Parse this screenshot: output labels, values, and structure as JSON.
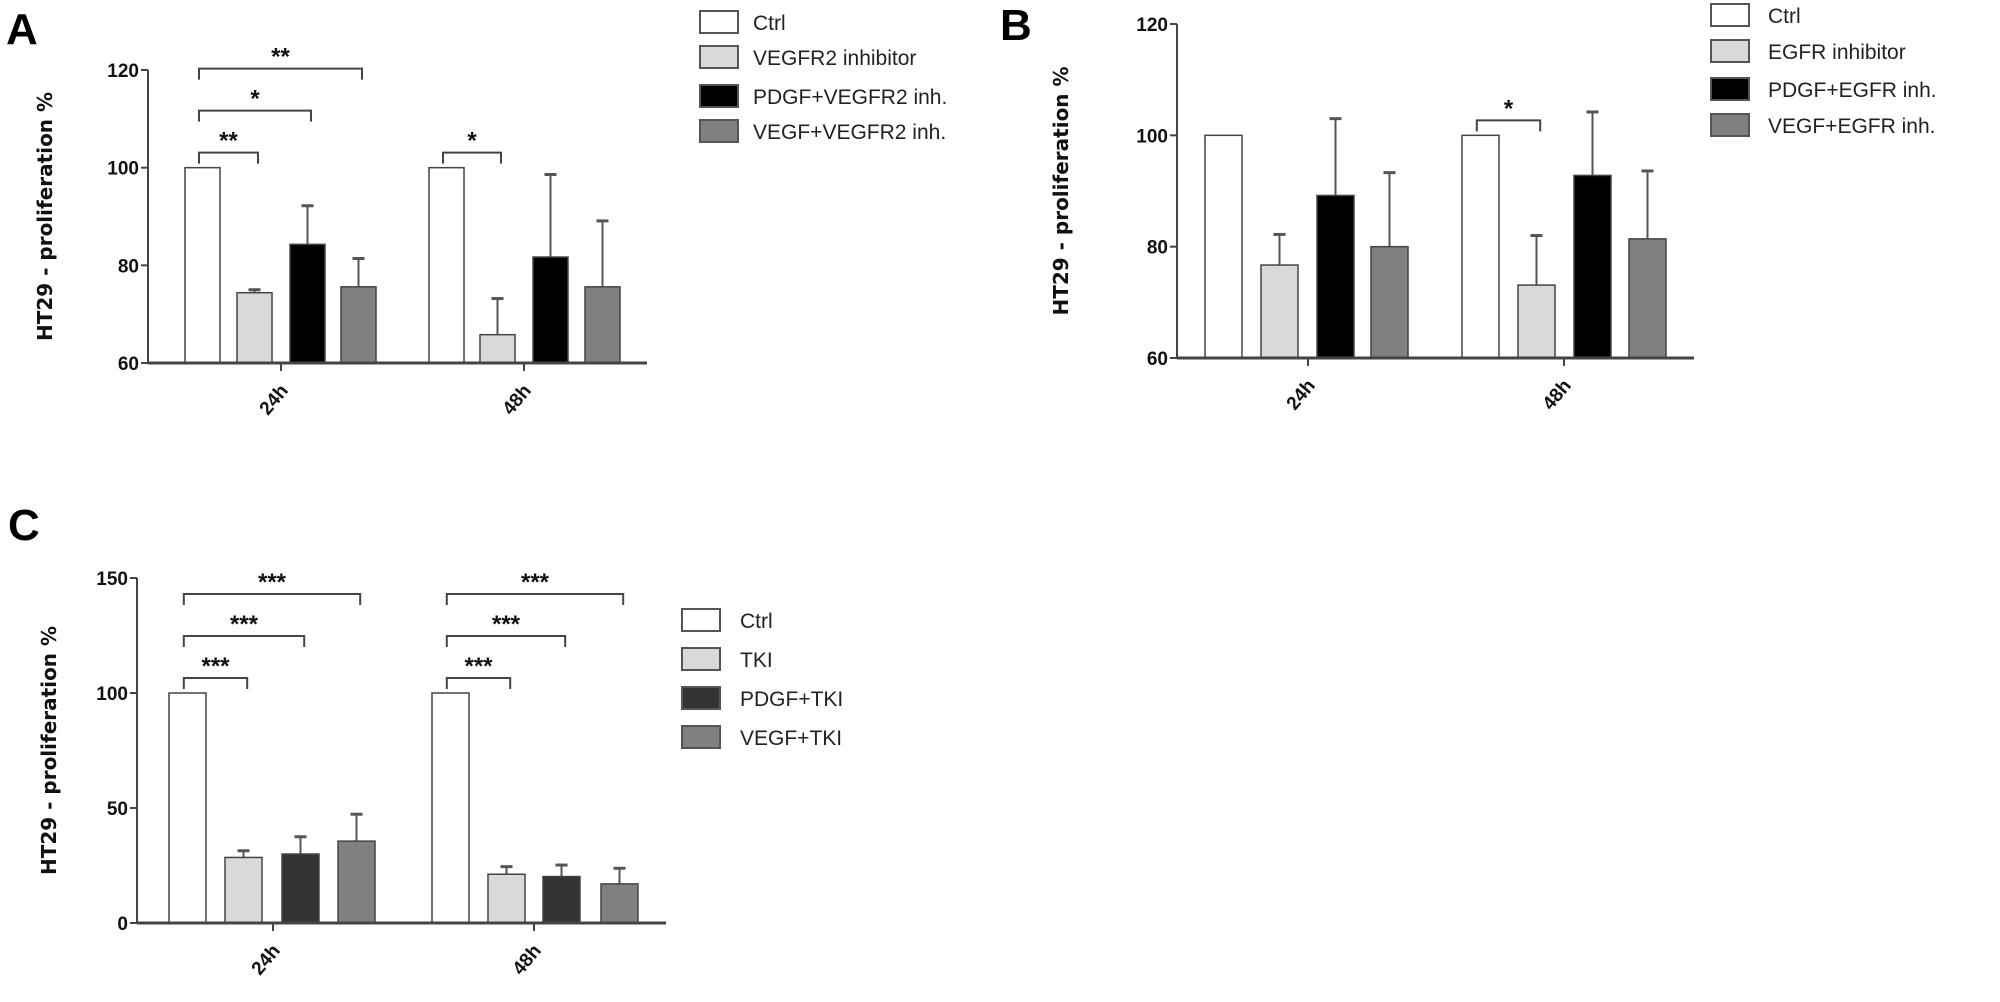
{
  "chart_data": [
    {
      "panel": "A",
      "type": "bar",
      "ylabel": "HT29 - proliferation %",
      "ylim": [
        60,
        120
      ],
      "yticks": [
        60,
        80,
        100,
        120
      ],
      "categories": [
        "24h",
        "48h"
      ],
      "series": [
        {
          "name": "Ctrl",
          "color": "#ffffff",
          "values": [
            100,
            100
          ],
          "errors": [
            100,
            100
          ]
        },
        {
          "name": "VEGFR2 inhibitor",
          "color": "#d9d9d9",
          "values": [
            74.4,
            65.8
          ],
          "errors": [
            75.0,
            73.2
          ]
        },
        {
          "name": "PDGF+VEGFR2 inh.",
          "color": "#000000",
          "values": [
            84.3,
            81.7
          ],
          "errors": [
            92.2,
            98.6
          ]
        },
        {
          "name": "VEGF+VEGFR2 inh.",
          "color": "#808080",
          "values": [
            75.6,
            75.6
          ],
          "errors": [
            81.4,
            89.1
          ]
        }
      ],
      "significance": [
        {
          "category": "24h",
          "from": "Ctrl",
          "to": "VEGFR2 inhibitor",
          "label": "**"
        },
        {
          "category": "24h",
          "from": "Ctrl",
          "to": "PDGF+VEGFR2 inh.",
          "label": "*"
        },
        {
          "category": "24h",
          "from": "Ctrl",
          "to": "VEGF+VEGFR2 inh.",
          "label": "**"
        },
        {
          "category": "48h",
          "from": "Ctrl",
          "to": "VEGFR2 inhibitor",
          "label": "*"
        }
      ],
      "legend": "right"
    },
    {
      "panel": "B",
      "type": "bar",
      "ylabel": "HT29 - proliferation %",
      "ylim": [
        60,
        120
      ],
      "yticks": [
        60,
        80,
        100,
        120
      ],
      "categories": [
        "24h",
        "48h"
      ],
      "series": [
        {
          "name": "Ctrl",
          "color": "#ffffff",
          "values": [
            100,
            100
          ],
          "errors": [
            100,
            100
          ]
        },
        {
          "name": "EGFR inhibitor",
          "color": "#d9d9d9",
          "values": [
            76.7,
            73.1
          ],
          "errors": [
            82.2,
            82.0
          ]
        },
        {
          "name": "PDGF+EGFR inh.",
          "color": "#000000",
          "values": [
            89.2,
            92.8
          ],
          "errors": [
            103.0,
            104.2
          ]
        },
        {
          "name": "VEGF+EGFR inh.",
          "color": "#808080",
          "values": [
            80.0,
            81.4
          ],
          "errors": [
            93.3,
            93.6
          ]
        }
      ],
      "significance": [
        {
          "category": "48h",
          "from": "Ctrl",
          "to": "EGFR inhibitor",
          "label": "*"
        }
      ],
      "legend": "right"
    },
    {
      "panel": "C",
      "type": "bar",
      "ylabel": "HT29 - proliferation %",
      "ylim": [
        0,
        150
      ],
      "yticks": [
        0,
        50,
        100,
        150
      ],
      "categories": [
        "24h",
        "48h"
      ],
      "series": [
        {
          "name": "Ctrl",
          "color": "#ffffff",
          "values": [
            100,
            100
          ],
          "errors": [
            100,
            100
          ]
        },
        {
          "name": "TKI",
          "color": "#d9d9d9",
          "values": [
            28.5,
            21.2
          ],
          "errors": [
            31.4,
            24.5
          ]
        },
        {
          "name": "PDGF+TKI",
          "color": "#333333",
          "values": [
            30.0,
            20.2
          ],
          "errors": [
            37.5,
            25.2
          ]
        },
        {
          "name": "VEGF+TKI",
          "color": "#808080",
          "values": [
            35.6,
            17.0
          ],
          "errors": [
            47.3,
            23.8
          ]
        }
      ],
      "significance": [
        {
          "category": "24h",
          "from": "Ctrl",
          "to": "TKI",
          "label": "***"
        },
        {
          "category": "24h",
          "from": "Ctrl",
          "to": "PDGF+TKI",
          "label": "***"
        },
        {
          "category": "24h",
          "from": "Ctrl",
          "to": "VEGF+TKI",
          "label": "***"
        },
        {
          "category": "48h",
          "from": "Ctrl",
          "to": "TKI",
          "label": "***"
        },
        {
          "category": "48h",
          "from": "Ctrl",
          "to": "PDGF+TKI",
          "label": "***"
        },
        {
          "category": "48h",
          "from": "Ctrl",
          "to": "VEGF+TKI",
          "label": "***"
        }
      ],
      "legend": "right"
    }
  ]
}
